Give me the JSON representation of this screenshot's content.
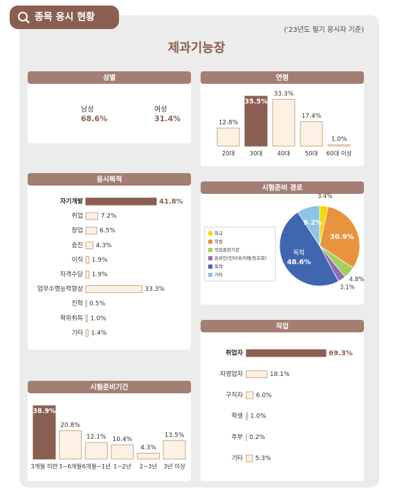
{
  "header": {
    "tag": "종목 응시 현황",
    "note": "('23년도 필기 응시자 기준)",
    "title": "제과기능장"
  },
  "chart_data": [
    {
      "type": "pictogram",
      "title": "성별",
      "categories": [
        "남성",
        "여성"
      ],
      "values": [
        68.6,
        31.4
      ],
      "value_labels": [
        "68.6%",
        "31.4%"
      ],
      "highlight_color": "#8b5e52"
    },
    {
      "type": "bar",
      "title": "연령",
      "categories": [
        "20대",
        "30대",
        "40대",
        "50대",
        "60대 이상"
      ],
      "values": [
        12.8,
        35.5,
        33.3,
        17.4,
        1.0
      ],
      "value_labels": [
        "12.8%",
        "35.5%",
        "33.3%",
        "17.4%",
        "1.0%"
      ],
      "color": "#fdf1e3",
      "stroke_color": "#c9a58c",
      "highlight": 1,
      "highlight_color": "#8b5e52"
    },
    {
      "type": "hbar",
      "title": "응시목적",
      "categories": [
        "자기개발",
        "취업",
        "창업",
        "승진",
        "이직",
        "자격수당",
        "업무수행능력향상",
        "진학",
        "학위취득",
        "기타"
      ],
      "values": [
        41.8,
        7.2,
        6.5,
        4.3,
        1.9,
        1.9,
        33.3,
        0.5,
        1.0,
        1.4
      ],
      "value_labels": [
        "41.8%",
        "7.2%",
        "6.5%",
        "4.3%",
        "1.9%",
        "1.9%",
        "33.3%",
        "0.5%",
        "1.0%",
        "1.4%"
      ],
      "color": "#fdf1e3",
      "stroke_color": "#c9a58c",
      "highlight": 0,
      "highlight_color": "#8b5e52"
    },
    {
      "type": "pie",
      "title": "시험준비 경로",
      "categories": [
        "학교",
        "학원",
        "직업훈련기관",
        "온라인(인터넷/카페/동호회)",
        "독학",
        "기타"
      ],
      "values": [
        3.4,
        30.9,
        4.8,
        3.1,
        48.6,
        9.2
      ],
      "value_labels": [
        "3.4%",
        "30.9%",
        "4.8%",
        "3.1%",
        "48.6%",
        "9.2%"
      ],
      "colors": [
        "#f5d800",
        "#e8943e",
        "#a5cf5a",
        "#8e6bb5",
        "#4166b0",
        "#8ec4e4"
      ],
      "label_category": 4
    },
    {
      "type": "hbar",
      "title": "직업",
      "categories": [
        "취업자",
        "자영업자",
        "구직자",
        "학생",
        "주부",
        "기타"
      ],
      "values": [
        69.3,
        18.1,
        6.0,
        1.0,
        0.2,
        5.3
      ],
      "value_labels": [
        "69.3%",
        "18.1%",
        "6.0%",
        "1.0%",
        "0.2%",
        "5.3%"
      ],
      "color": "#fdf1e3",
      "stroke_color": "#c9a58c",
      "highlight": 0,
      "highlight_color": "#8b5e52"
    },
    {
      "type": "bar",
      "title": "시험준비기간",
      "categories": [
        "3개월 미만",
        "3~6개월",
        "6개월~1년",
        "1~2년",
        "2~3년",
        "3년 이상"
      ],
      "values": [
        38.9,
        20.8,
        12.1,
        10.4,
        4.3,
        13.5
      ],
      "value_labels": [
        "38.9%",
        "20.8%",
        "12.1%",
        "10.4%",
        "4.3%",
        "13.5%"
      ],
      "color": "#fdf1e3",
      "stroke_color": "#c9a58c",
      "highlight": 0,
      "highlight_color": "#8b5e52"
    }
  ]
}
